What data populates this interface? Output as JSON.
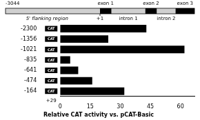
{
  "chart_data": {
    "type": "bar",
    "orientation": "horizontal",
    "title": "Relative CAT activity vs. pCAT-Basic",
    "categories": [
      "-2300",
      "-1356",
      "-1021",
      "-835",
      "-641",
      "-474",
      "-164"
    ],
    "values": [
      43,
      24,
      62,
      5,
      9,
      16,
      32
    ],
    "color": "#000000",
    "xlim": [
      0,
      67
    ],
    "xticks": [
      0,
      15,
      30,
      45,
      60
    ],
    "grid": false,
    "annotations": [
      "-3044",
      "+1",
      "exon 1",
      "intron 1",
      "exon 2",
      "intron 2",
      "exon 3",
      "5' flanking region",
      "CAT",
      "+29"
    ]
  }
}
